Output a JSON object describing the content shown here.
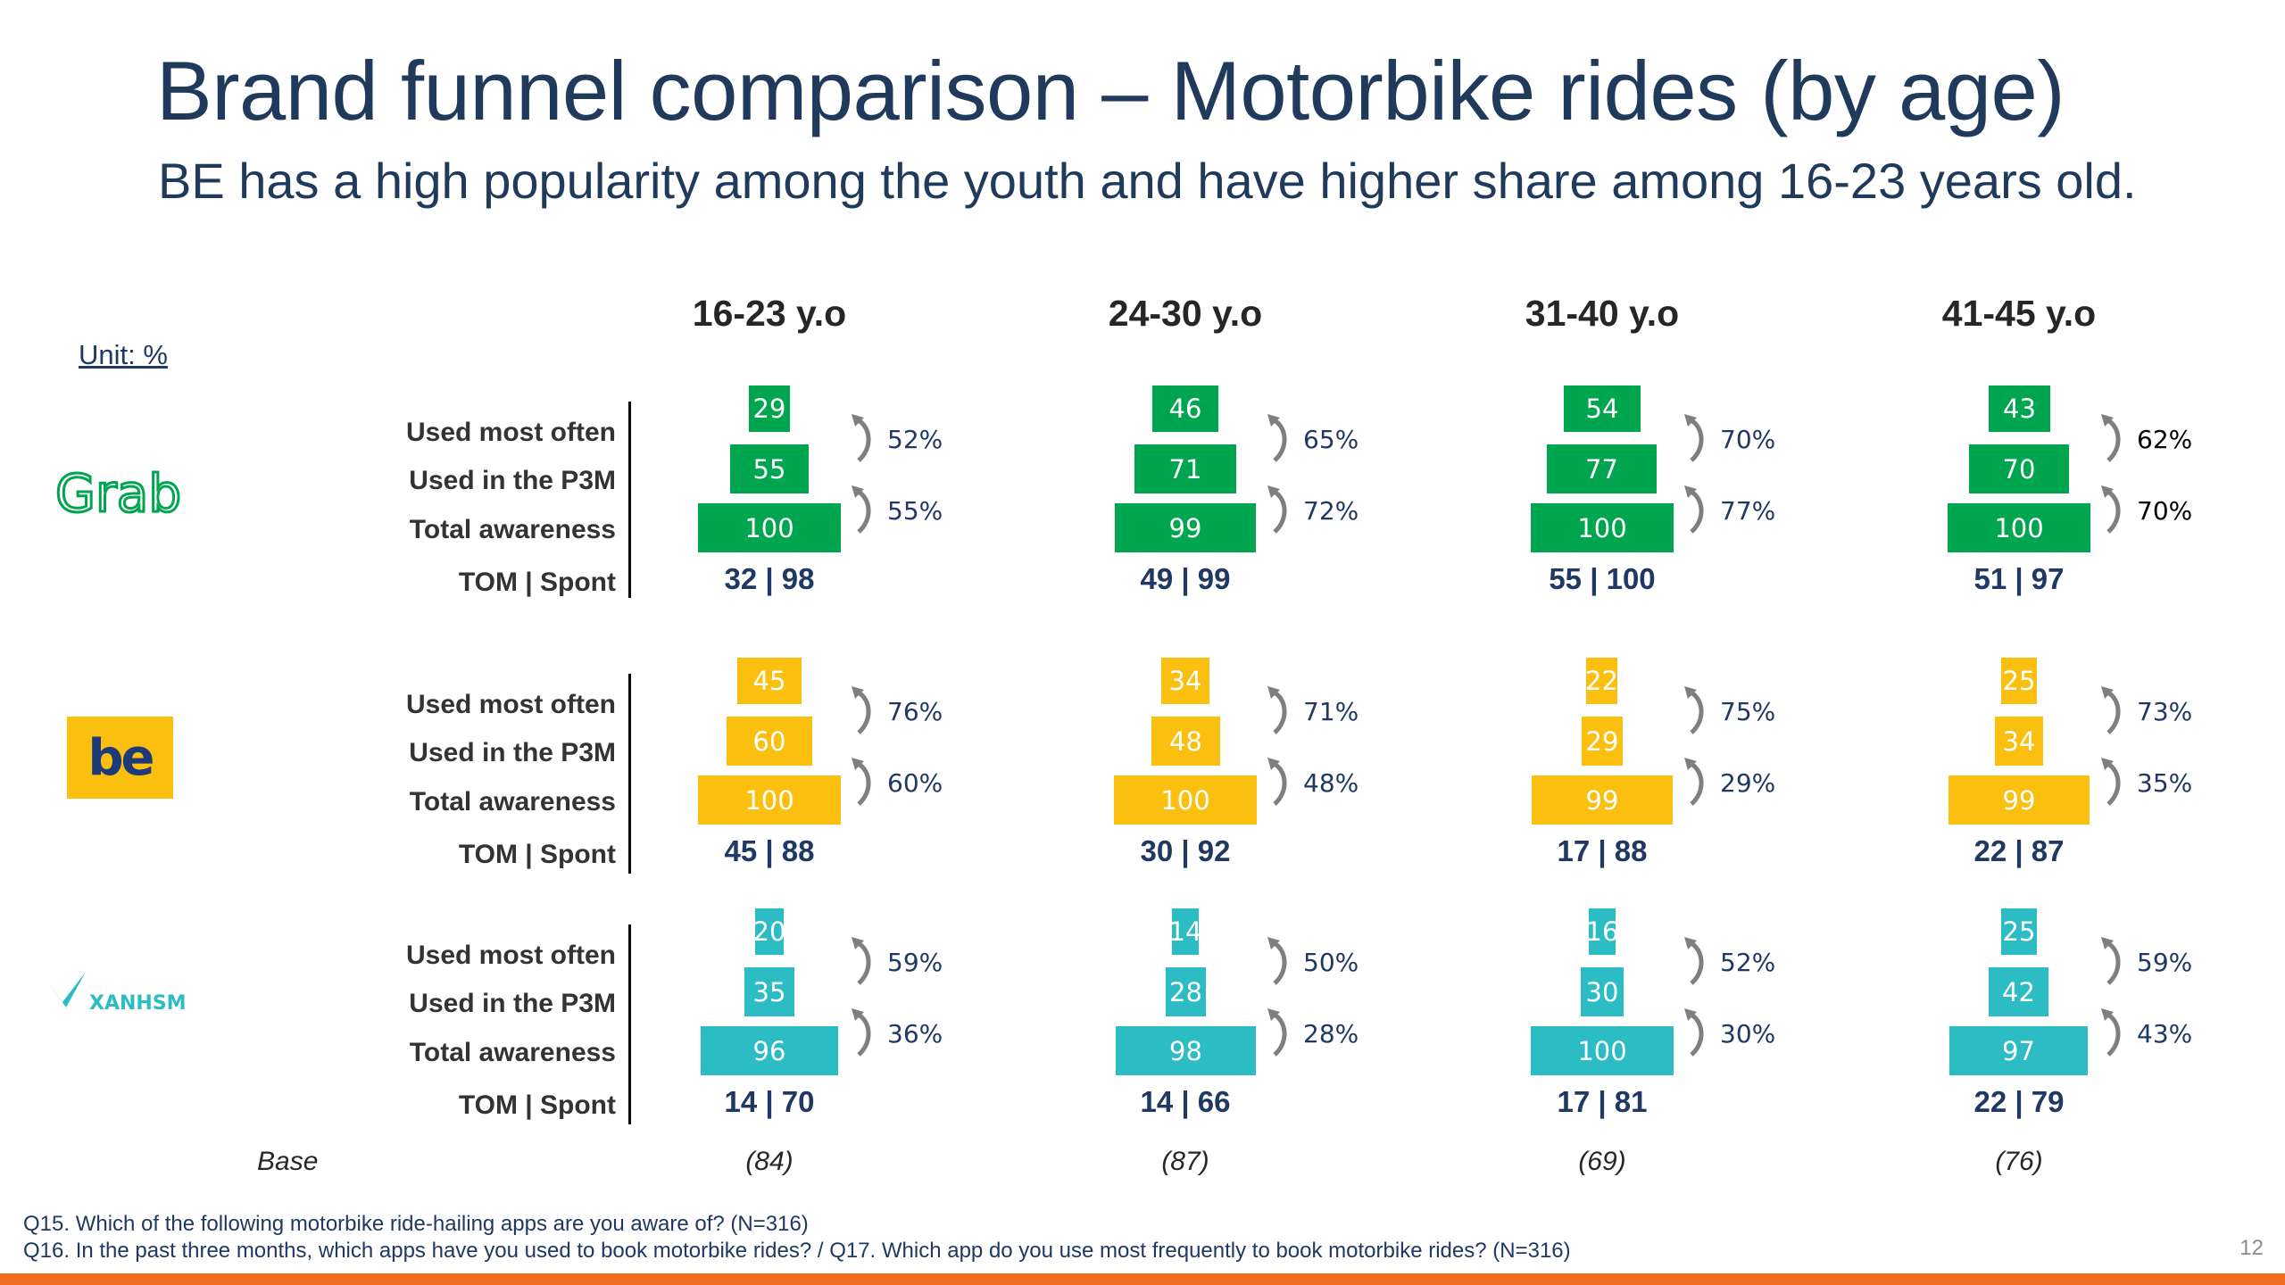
{
  "title": "Brand funnel comparison – Motorbike rides (by age)",
  "subtitle": "BE has a high popularity among the youth and have higher share among 16-23 years old.",
  "unit_label": "Unit: %",
  "row_labels": [
    "Used most often",
    "Used in the P3M",
    "Total awareness",
    "TOM | Spont"
  ],
  "base_label": "Base",
  "notes": [
    "Q15. Which of the following motorbike ride-hailing apps are you aware of? (N=316)",
    "Q16. In the past three months, which apps have you used to book motorbike rides? / Q17. Which app do you use most frequently to book motorbike rides? (N=316)"
  ],
  "page_number": "12",
  "colors": {
    "grab": "#00a64f",
    "be": "#fbbf0f",
    "xanh": "#2cbcc4",
    "title": "#203a5c",
    "accent_bar": "#f26b21"
  },
  "chart_data": {
    "type": "table",
    "title": "Brand funnel comparison – Motorbike rides (by age)",
    "unit": "%",
    "age_groups": [
      "16-23 y.o",
      "24-30 y.o",
      "31-40 y.o",
      "41-45 y.o"
    ],
    "bases": [
      "(84)",
      "(87)",
      "(69)",
      "(76)"
    ],
    "brands": [
      {
        "name": "Grab",
        "logo_text": "Grab",
        "groups": [
          {
            "most_often": 29,
            "p3m": 55,
            "awareness": 100,
            "conv_top": "52%",
            "conv_bottom": "55%",
            "tom_spont": "32 | 98"
          },
          {
            "most_often": 46,
            "p3m": 71,
            "awareness": 99,
            "conv_top": "65%",
            "conv_bottom": "72%",
            "tom_spont": "49 | 99"
          },
          {
            "most_often": 54,
            "p3m": 77,
            "awareness": 100,
            "conv_top": "70%",
            "conv_bottom": "77%",
            "tom_spont": "55 | 100"
          },
          {
            "most_often": 43,
            "p3m": 70,
            "awareness": 100,
            "conv_top": "62%",
            "conv_bottom": "70%",
            "tom_spont": "51 | 97"
          }
        ]
      },
      {
        "name": "be",
        "logo_text": "be",
        "groups": [
          {
            "most_often": 45,
            "p3m": 60,
            "awareness": 100,
            "conv_top": "76%",
            "conv_bottom": "60%",
            "tom_spont": "45 | 88"
          },
          {
            "most_often": 34,
            "p3m": 48,
            "awareness": 100,
            "conv_top": "71%",
            "conv_bottom": "48%",
            "tom_spont": "30 | 92"
          },
          {
            "most_often": 22,
            "p3m": 29,
            "awareness": 99,
            "conv_top": "75%",
            "conv_bottom": "29%",
            "tom_spont": "17 | 88"
          },
          {
            "most_often": 25,
            "p3m": 34,
            "awareness": 99,
            "conv_top": "73%",
            "conv_bottom": "35%",
            "tom_spont": "22 | 87"
          }
        ]
      },
      {
        "name": "Xanh SM",
        "logo_text": "XANHSM",
        "groups": [
          {
            "most_often": 20,
            "p3m": 35,
            "awareness": 96,
            "conv_top": "59%",
            "conv_bottom": "36%",
            "tom_spont": "14 | 70"
          },
          {
            "most_often": 14,
            "p3m": 28,
            "awareness": 98,
            "conv_top": "50%",
            "conv_bottom": "28%",
            "tom_spont": "14 | 66"
          },
          {
            "most_often": 16,
            "p3m": 30,
            "awareness": 100,
            "conv_top": "52%",
            "conv_bottom": "30%",
            "tom_spont": "17 | 81"
          },
          {
            "most_often": 25,
            "p3m": 42,
            "awareness": 97,
            "conv_top": "59%",
            "conv_bottom": "43%",
            "tom_spont": "22 | 79"
          }
        ]
      }
    ]
  }
}
